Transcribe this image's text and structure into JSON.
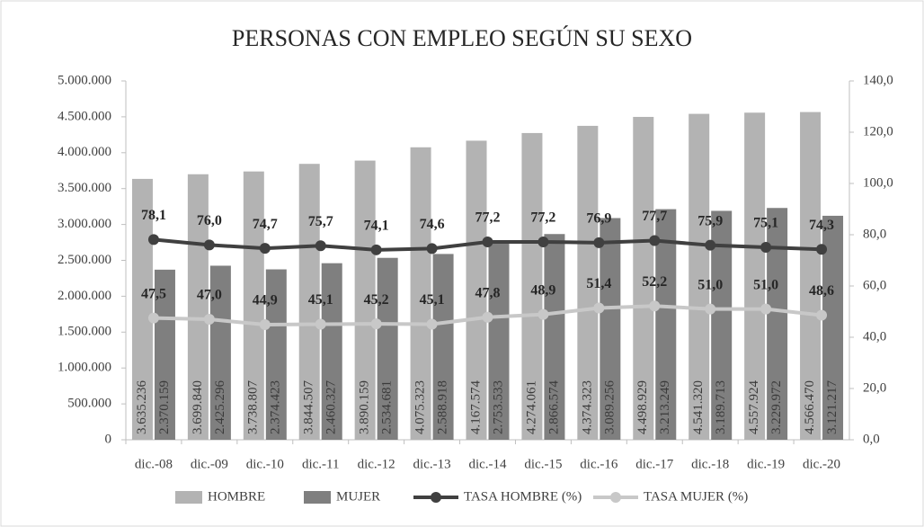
{
  "chart_data": {
    "type": "bar",
    "title": "PERSONAS CON EMPLEO SEGÚN SU SEXO",
    "categories": [
      "dic.-08",
      "dic.-09",
      "dic.-10",
      "dic.-11",
      "dic.-12",
      "dic.-13",
      "dic.-14",
      "dic.-15",
      "dic.-16",
      "dic.-17",
      "dic.-18",
      "dic.-19",
      "dic.-20"
    ],
    "series": [
      {
        "name": "HOMBRE",
        "type": "bar",
        "color": "#b3b3b3",
        "values": [
          3635236,
          3699840,
          3738807,
          3844507,
          3890159,
          4075323,
          4167574,
          4274061,
          4374323,
          4498929,
          4541320,
          4557924,
          4566470
        ],
        "value_labels": [
          "3.635.236",
          "3.699.840",
          "3.738.807",
          "3.844.507",
          "3.890.159",
          "4.075.323",
          "4.167.574",
          "4.274.061",
          "4.374.323",
          "4.498.929",
          "4.541.320",
          "4.557.924",
          "4.566.470"
        ]
      },
      {
        "name": "MUJER",
        "type": "bar",
        "color": "#7f7f7f",
        "values": [
          2370159,
          2425296,
          2374423,
          2460327,
          2534681,
          2588918,
          2753533,
          2866574,
          3089256,
          3213249,
          3189713,
          3229972,
          3121217
        ],
        "value_labels": [
          "2.370.159",
          "2.425.296",
          "2.374.423",
          "2.460.327",
          "2.534.681",
          "2.588.918",
          "2.753.533",
          "2.866.574",
          "3.089.256",
          "3.213.249",
          "3.189.713",
          "3.229.972",
          "3.121.217"
        ]
      },
      {
        "name": "TASA HOMBRE (%)",
        "type": "line",
        "axis": "y2",
        "color": "#404040",
        "values": [
          78.1,
          76.0,
          74.7,
          75.7,
          74.1,
          74.6,
          77.2,
          77.2,
          76.9,
          77.7,
          75.9,
          75.1,
          74.3
        ],
        "value_labels": [
          "78,1",
          "76,0",
          "74,7",
          "75,7",
          "74,1",
          "74,6",
          "77,2",
          "77,2",
          "76,9",
          "77,7",
          "75,9",
          "75,1",
          "74,3"
        ]
      },
      {
        "name": "TASA MUJER (%)",
        "type": "line",
        "axis": "y2",
        "color": "#c8c8c8",
        "values": [
          47.5,
          47.0,
          44.9,
          45.1,
          45.2,
          45.1,
          47.8,
          48.9,
          51.4,
          52.2,
          51.0,
          51.0,
          48.6
        ],
        "value_labels": [
          "47,5",
          "47,0",
          "44,9",
          "45,1",
          "45,2",
          "45,1",
          "47,8",
          "48,9",
          "51,4",
          "52,2",
          "51,0",
          "51,0",
          "48,6"
        ]
      }
    ],
    "ylim": [
      0,
      5000000
    ],
    "yticks": [
      0,
      {
        "value": 500000,
        "label": "500.000"
      },
      {
        "value": 1000000,
        "label": "1.000.000"
      },
      {
        "value": 1500000,
        "label": "1.500.000"
      },
      {
        "value": 2000000,
        "label": "2.000.000"
      },
      {
        "value": 2500000,
        "label": "2.500.000"
      },
      {
        "value": 3000000,
        "label": "3.000.000"
      },
      {
        "value": 3500000,
        "label": "3.500.000"
      },
      {
        "value": 4000000,
        "label": "4.000.000"
      },
      {
        "value": 4500000,
        "label": "4.500.000"
      },
      {
        "value": 5000000,
        "label": "5.000.000"
      }
    ],
    "y2lim": [
      0,
      140
    ],
    "y2ticks": [
      {
        "value": 0,
        "label": "0,0"
      },
      {
        "value": 20,
        "label": "20,0"
      },
      {
        "value": 40,
        "label": "40,0"
      },
      {
        "value": 60,
        "label": "60,0"
      },
      {
        "value": 80,
        "label": "80,0"
      },
      {
        "value": 100,
        "label": "100,0"
      },
      {
        "value": 120,
        "label": "120,0"
      },
      {
        "value": 140,
        "label": "140,0"
      }
    ],
    "legend": "bottom"
  }
}
